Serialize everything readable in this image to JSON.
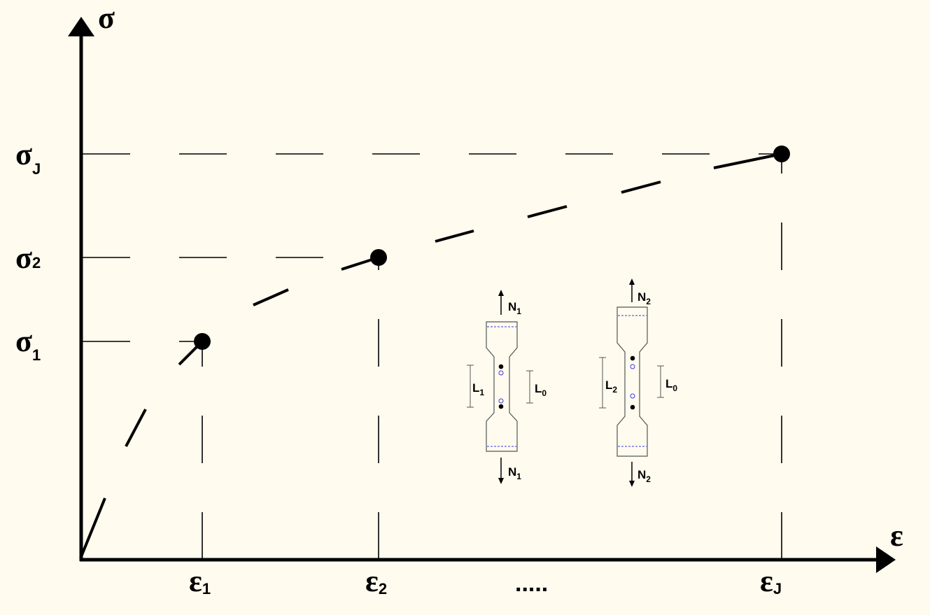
{
  "axes": {
    "y_symbol": "σ",
    "x_symbol": "ε"
  },
  "y_ticks": [
    {
      "main": "σ",
      "sub": "1"
    },
    {
      "main": "σ",
      "sub": "2"
    },
    {
      "main": "σ",
      "sub": "J"
    }
  ],
  "x_ticks": [
    {
      "main": "ε",
      "sub": "1"
    },
    {
      "main": "ε",
      "sub": "2"
    },
    {
      "main": "ε",
      "sub": "J"
    }
  ],
  "x_ellipsis": ".....",
  "specimens": [
    {
      "force": {
        "main": "N",
        "sub": "1"
      },
      "gauge_length": {
        "main": "L",
        "sub": "1"
      },
      "original_length": {
        "main": "L",
        "sub": "0"
      }
    },
    {
      "force": {
        "main": "N",
        "sub": "2"
      },
      "gauge_length": {
        "main": "L",
        "sub": "2"
      },
      "original_length": {
        "main": "L",
        "sub": "0"
      }
    }
  ],
  "colors": {
    "background": "#fffbef",
    "ink": "#000000",
    "specimen_marks": "#3a3ae0",
    "specimen_outline": "#555555"
  }
}
